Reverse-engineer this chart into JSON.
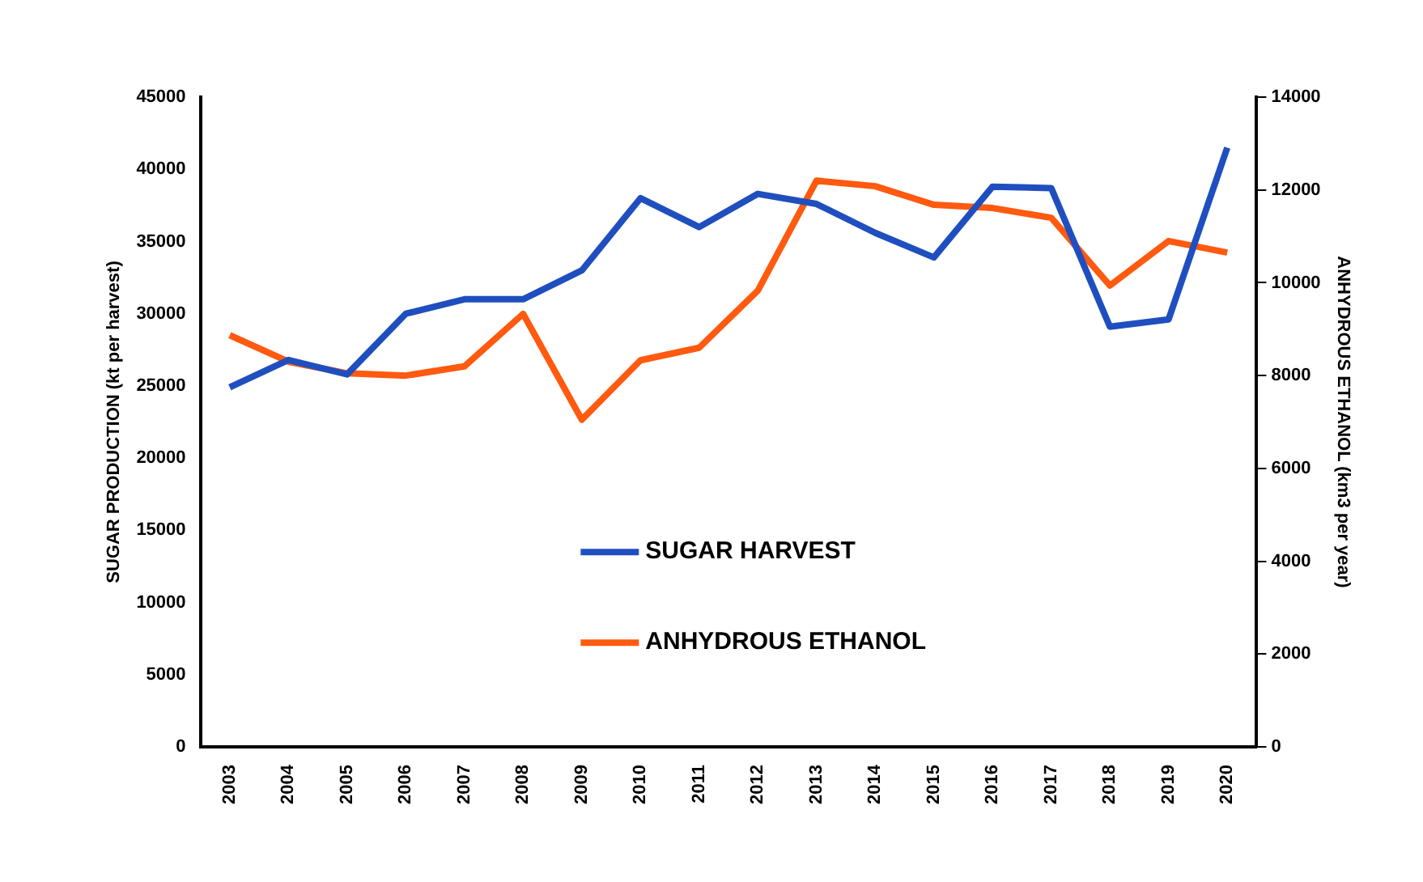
{
  "chart_data": {
    "type": "line",
    "ylabel": "SUGAR PRODUCTION (kt per harvest)",
    "y2label": "ANHYDROUS ETHANOL (km3 per year)",
    "categories": [
      "2003",
      "2004",
      "2005",
      "2006",
      "2007",
      "2008",
      "2009",
      "2010",
      "2011",
      "2012",
      "2013",
      "2014",
      "2015",
      "2016",
      "2017",
      "2018",
      "2019",
      "2020"
    ],
    "series": [
      {
        "name": "SUGAR HARVEST",
        "color": "#1f4fbf",
        "values": [
          24900,
          26800,
          25800,
          30000,
          31000,
          31000,
          33000,
          38000,
          36000,
          38300,
          37600,
          35600,
          33900,
          38800,
          38700,
          29100,
          29600,
          41500
        ]
      },
      {
        "name": "ANHYDROUS ETHANOL",
        "color": "#ff5a0f",
        "axis": "y2",
        "values": [
          8870,
          8300,
          8050,
          8000,
          8200,
          9330,
          7050,
          8330,
          8600,
          9830,
          12200,
          12080,
          11680,
          11610,
          11400,
          9940,
          10900,
          10650
        ]
      }
    ],
    "ylim": [
      0,
      45000
    ],
    "yticks": [
      0,
      5000,
      10000,
      15000,
      20000,
      25000,
      30000,
      35000,
      40000,
      45000
    ],
    "y2lim": [
      0,
      14000
    ],
    "y2ticks": [
      0,
      2000,
      4000,
      6000,
      8000,
      10000,
      12000,
      14000
    ],
    "grid": false,
    "legend": "center",
    "marker": "none",
    "line_style": "solid"
  }
}
